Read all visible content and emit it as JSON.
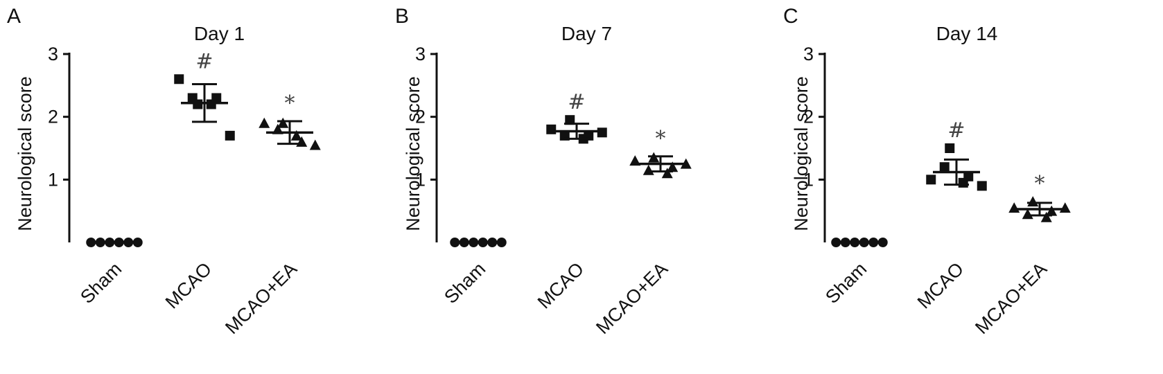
{
  "chart_data": [
    {
      "type": "scatter",
      "panel_label": "A",
      "title": "Day 1",
      "ylabel": "Neurological score",
      "yticks": [
        "1",
        "2",
        "3"
      ],
      "ylim": [
        0,
        3
      ],
      "categories": [
        "Sham",
        "MCAO",
        "MCAO+EA"
      ],
      "markers": [
        "circle",
        "square",
        "triangle"
      ],
      "annotations": [
        "",
        "#",
        "*"
      ],
      "points": [
        [
          0,
          0,
          0,
          0,
          0,
          0
        ],
        [
          2.6,
          2.3,
          2.2,
          2.2,
          2.3,
          1.7
        ],
        [
          1.9,
          1.8,
          1.9,
          1.7,
          1.6,
          1.55
        ]
      ],
      "means": [
        0,
        2.22,
        1.75
      ],
      "sd": [
        0,
        0.3,
        0.18
      ]
    },
    {
      "type": "scatter",
      "panel_label": "B",
      "title": "Day 7",
      "ylabel": "Neurological score",
      "yticks": [
        "1",
        "2",
        "3"
      ],
      "ylim": [
        0,
        3
      ],
      "categories": [
        "Sham",
        "MCAO",
        "MCAO+EA"
      ],
      "markers": [
        "circle",
        "square",
        "triangle"
      ],
      "annotations": [
        "",
        "#",
        "*"
      ],
      "points": [
        [
          0,
          0,
          0,
          0,
          0,
          0
        ],
        [
          1.8,
          1.7,
          1.95,
          1.65,
          1.7,
          1.75
        ],
        [
          1.3,
          1.15,
          1.35,
          1.1,
          1.2,
          1.25
        ]
      ],
      "means": [
        0,
        1.77,
        1.25
      ],
      "sd": [
        0,
        0.12,
        0.12
      ]
    },
    {
      "type": "scatter",
      "panel_label": "C",
      "title": "Day 14",
      "ylabel": "Neurological score",
      "yticks": [
        "1",
        "2",
        "3"
      ],
      "ylim": [
        0,
        3
      ],
      "categories": [
        "Sham",
        "MCAO",
        "MCAO+EA"
      ],
      "markers": [
        "circle",
        "square",
        "triangle"
      ],
      "annotations": [
        "",
        "#",
        "*"
      ],
      "points": [
        [
          0,
          0,
          0,
          0,
          0,
          0
        ],
        [
          1.0,
          1.2,
          1.5,
          0.95,
          1.05,
          0.9
        ],
        [
          0.55,
          0.45,
          0.65,
          0.4,
          0.5,
          0.55
        ]
      ],
      "means": [
        0,
        1.12,
        0.53
      ],
      "sd": [
        0,
        0.2,
        0.1
      ]
    }
  ]
}
